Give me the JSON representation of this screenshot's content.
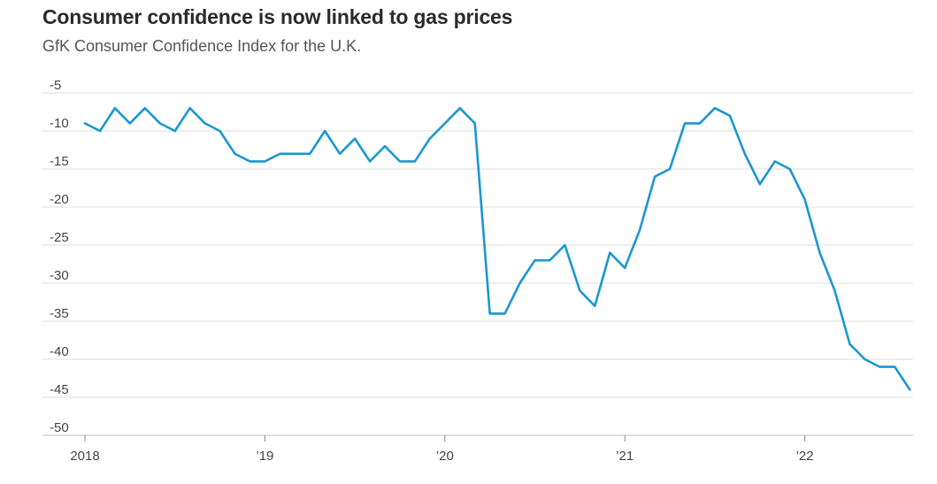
{
  "chart_data": {
    "type": "line",
    "title": "Consumer confidence is now linked to gas prices",
    "subtitle": "GfK Consumer Confidence Index for the U.K.",
    "ylim": [
      -50,
      -5
    ],
    "yticks": [
      -5,
      -10,
      -15,
      -20,
      -25,
      -30,
      -35,
      -40,
      -45,
      -50
    ],
    "xticks": [
      {
        "label": "2018",
        "t": 0
      },
      {
        "label": "’19",
        "t": 12
      },
      {
        "label": "’20",
        "t": 24
      },
      {
        "label": "’21",
        "t": 36
      },
      {
        "label": "’22",
        "t": 48
      }
    ],
    "series": [
      {
        "color": "#1a97d1",
        "values": [
          -9,
          -10,
          -7,
          -9,
          -7,
          -9,
          -10,
          -7,
          -9,
          -10,
          -13,
          -14,
          -14,
          -13,
          -13,
          -13,
          -10,
          -13,
          -11,
          -14,
          -12,
          -14,
          -14,
          -11,
          -9,
          -7,
          -9,
          -34,
          -34,
          -30,
          -27,
          -27,
          -25,
          -31,
          -33,
          -26,
          -28,
          -23,
          -16,
          -15,
          -9,
          -9,
          -7,
          -8,
          -13,
          -17,
          -14,
          -15,
          -19,
          -26,
          -31,
          -38,
          -40,
          -41,
          -41,
          -44
        ]
      }
    ]
  }
}
